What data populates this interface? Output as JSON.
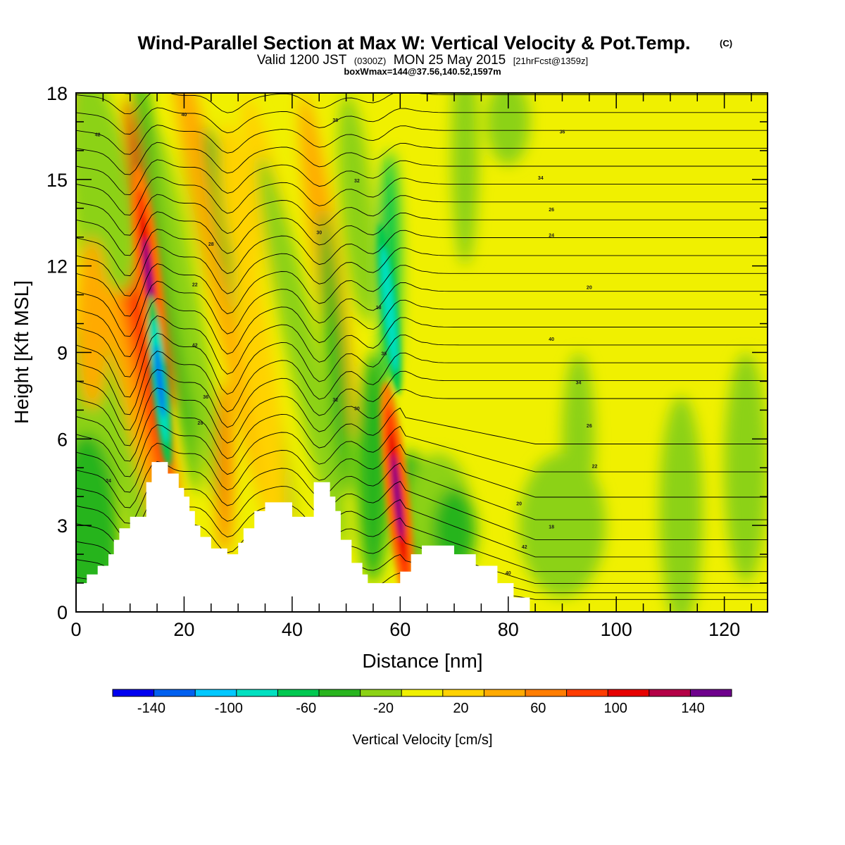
{
  "header": {
    "title": "Wind-Parallel Section at Max W: Vertical Velocity & Pot.Temp.",
    "title_mark": "(C)",
    "subtitle_a": "Valid 1200 JST",
    "subtitle_b": "(0300Z)",
    "subtitle_c": "MON 25 May 2015",
    "subtitle_d": "[21hrFcst@1359z]",
    "subtitle2": "boxWmax=144@37.56,140.52,1597m"
  },
  "chart_data": {
    "type": "heatmap",
    "xlabel": "Distance [nm]",
    "ylabel": "Height [Kft MSL]",
    "xlim": [
      0,
      128
    ],
    "ylim": [
      0,
      18
    ],
    "x_ticks": [
      0,
      20,
      40,
      60,
      80,
      100,
      120
    ],
    "y_ticks": [
      0,
      3,
      6,
      9,
      12,
      15,
      18
    ],
    "colorbar": {
      "label": "Vertical Velocity [cm/s]",
      "range": [
        -160,
        160
      ],
      "ticks": [
        -140,
        -100,
        -60,
        -20,
        20,
        60,
        100,
        140
      ],
      "colors": [
        "#0000f0",
        "#0060f0",
        "#00c8ff",
        "#00e0c0",
        "#00c850",
        "#28b41e",
        "#8cd214",
        "#f0f000",
        "#ffd200",
        "#ffaa00",
        "#ff7d00",
        "#ff3c00",
        "#e60000",
        "#b40046",
        "#6e008c"
      ]
    },
    "terrain": [
      [
        0,
        1.0
      ],
      [
        2,
        1.0
      ],
      [
        2,
        1.3
      ],
      [
        4,
        1.3
      ],
      [
        4,
        1.6
      ],
      [
        6,
        1.6
      ],
      [
        6,
        2.0
      ],
      [
        7,
        2.0
      ],
      [
        7,
        2.5
      ],
      [
        8,
        2.5
      ],
      [
        8,
        2.9
      ],
      [
        10,
        2.9
      ],
      [
        10,
        3.3
      ],
      [
        13,
        3.3
      ],
      [
        13,
        4.5
      ],
      [
        14,
        4.5
      ],
      [
        14,
        5.2
      ],
      [
        17,
        5.2
      ],
      [
        17,
        4.8
      ],
      [
        19,
        4.8
      ],
      [
        19,
        4.3
      ],
      [
        20,
        4.3
      ],
      [
        20,
        4.0
      ],
      [
        21,
        4.0
      ],
      [
        21,
        3.5
      ],
      [
        22,
        3.5
      ],
      [
        22,
        3.0
      ],
      [
        23,
        3.0
      ],
      [
        23,
        2.6
      ],
      [
        25,
        2.6
      ],
      [
        25,
        2.2
      ],
      [
        28,
        2.2
      ],
      [
        28,
        2.0
      ],
      [
        30,
        2.0
      ],
      [
        30,
        2.4
      ],
      [
        31,
        2.4
      ],
      [
        31,
        2.9
      ],
      [
        33,
        2.9
      ],
      [
        33,
        3.5
      ],
      [
        35,
        3.5
      ],
      [
        35,
        3.8
      ],
      [
        40,
        3.8
      ],
      [
        40,
        3.3
      ],
      [
        44,
        3.3
      ],
      [
        44,
        4.5
      ],
      [
        47,
        4.5
      ],
      [
        47,
        4.0
      ],
      [
        48,
        4.0
      ],
      [
        48,
        3.5
      ],
      [
        49,
        3.5
      ],
      [
        49,
        2.5
      ],
      [
        51,
        2.5
      ],
      [
        51,
        1.7
      ],
      [
        53,
        1.7
      ],
      [
        53,
        1.3
      ],
      [
        54,
        1.3
      ],
      [
        54,
        1.0
      ],
      [
        60,
        1.0
      ],
      [
        60,
        1.4
      ],
      [
        62,
        1.4
      ],
      [
        62,
        2.0
      ],
      [
        64,
        2.0
      ],
      [
        64,
        2.3
      ],
      [
        70,
        2.3
      ],
      [
        70,
        2.0
      ],
      [
        74,
        2.0
      ],
      [
        74,
        1.6
      ],
      [
        78,
        1.6
      ],
      [
        78,
        1.0
      ],
      [
        81,
        1.0
      ],
      [
        81,
        0.5
      ],
      [
        84,
        0.5
      ],
      [
        84,
        0.0
      ]
    ],
    "updraft_cores": [
      {
        "x": 13.5,
        "y": 11.5,
        "w_peak": 140
      },
      {
        "x": 59.5,
        "y": 4.0,
        "w_peak": 144
      }
    ],
    "downdraft_cores": [
      {
        "x": 15.5,
        "y": 8.0,
        "w_peak": -120
      },
      {
        "x": 58.0,
        "y": 10.5,
        "w_peak": -90
      }
    ],
    "theta_contour_labels": [
      "42",
      "40",
      "38",
      "36",
      "34",
      "32",
      "30",
      "28",
      "26",
      "24",
      "22",
      "20",
      "18"
    ]
  }
}
